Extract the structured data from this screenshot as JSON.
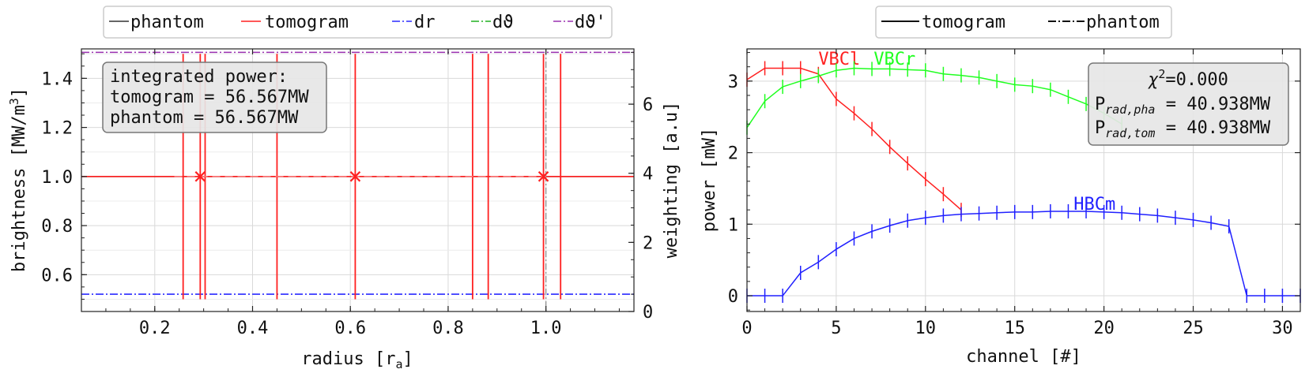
{
  "chart_data": [
    {
      "type": "line",
      "xlabel": "radius [r",
      "xlabel_sub": "a",
      "xlabel_end": "]",
      "ylabel": "brightness [MW/m",
      "ylabel_sup": "3",
      "ylabel_end": "]",
      "y2label": "weighting [a.u]",
      "xlim": [
        0.05,
        1.18
      ],
      "ylim": [
        0.45,
        1.52
      ],
      "y2lim": [
        0,
        7.6
      ],
      "xticks": [
        0.2,
        0.4,
        0.6,
        0.8,
        1.0
      ],
      "xtick_labels": [
        "0.2",
        "0.4",
        "0.6",
        "0.8",
        "1.0"
      ],
      "yticks": [
        0.6,
        0.8,
        1.0,
        1.2,
        1.4
      ],
      "ytick_labels": [
        "0.6",
        "0.8",
        "1.0",
        "1.2",
        "1.4"
      ],
      "y2ticks": [
        0,
        2,
        4,
        6
      ],
      "y2tick_labels": [
        "0",
        "2",
        "4",
        "6"
      ],
      "grid": true,
      "legend_position": "top-center",
      "legend": [
        {
          "label": "phantom",
          "color": "#333333",
          "dash": "solid"
        },
        {
          "label": "tomogram",
          "color": "#ff2020",
          "dash": "solid"
        },
        {
          "label": "dr",
          "color": "#2a2aff",
          "dash": "dashdot"
        },
        {
          "label": "dϑ",
          "color": "#20b020",
          "dash": "dashdot"
        },
        {
          "label": "dϑ'",
          "color": "#9a30b0",
          "dash": "dashdot"
        }
      ],
      "series": [
        {
          "name": "phantom",
          "color": "#333333",
          "x": [
            0.05,
            1.18
          ],
          "y": [
            1.0,
            1.0
          ]
        },
        {
          "name": "tomogram",
          "color": "#ff2020",
          "x": [
            0.05,
            1.18
          ],
          "y": [
            1.0,
            1.0
          ]
        },
        {
          "name": "dr",
          "color": "#2a2aff",
          "x": [
            0.05,
            1.18
          ],
          "y2": [
            0.5,
            0.5
          ]
        },
        {
          "name": "dϑ'",
          "color": "#9a30b0",
          "x": [
            0.05,
            1.18
          ],
          "y2": [
            7.5,
            7.5
          ]
        }
      ],
      "vertical_lines": {
        "color": "#ff2020",
        "x": [
          0.258,
          0.293,
          0.303,
          0.45,
          0.61,
          0.85,
          0.882,
          0.995,
          1.03
        ],
        "y_from": 0.5,
        "y_to": 1.5
      },
      "markers": {
        "color": "#ff2020",
        "symbol": "x",
        "x": [
          0.293,
          0.61,
          0.995
        ],
        "y": [
          1.0,
          1.0,
          1.0
        ]
      },
      "reference_line": {
        "color": "#888888",
        "x": 1.0
      },
      "annotation": {
        "line1": "integrated power:",
        "line2": "tomogram = 56.567MW",
        "line3": "phantom = 56.567MW"
      }
    },
    {
      "type": "line",
      "xlabel": "channel [#]",
      "ylabel": "power [mW]",
      "xlim": [
        0,
        31
      ],
      "ylim": [
        -0.22,
        3.45
      ],
      "xticks": [
        0,
        5,
        10,
        15,
        20,
        25,
        30
      ],
      "xtick_labels": [
        "0",
        "5",
        "10",
        "15",
        "20",
        "25",
        "30"
      ],
      "yticks": [
        0,
        1,
        2,
        3
      ],
      "ytick_labels": [
        "0",
        "1",
        "2",
        "3"
      ],
      "grid": true,
      "legend_position": "top-center",
      "legend": [
        {
          "label": "tomogram",
          "color": "#111111",
          "dash": "solid"
        },
        {
          "label": "phantom",
          "color": "#111111",
          "dash": "dashdot"
        }
      ],
      "series": [
        {
          "name": "VBCl",
          "color": "#ff2020",
          "label_at": [
            4.0,
            3.23
          ],
          "x": [
            0,
            1,
            2,
            3,
            4,
            5,
            6,
            7,
            8,
            9,
            10,
            11,
            12
          ],
          "y": [
            3.02,
            3.18,
            3.18,
            3.18,
            3.1,
            2.75,
            2.55,
            2.33,
            2.08,
            1.85,
            1.63,
            1.42,
            1.2
          ]
        },
        {
          "name": "VBCr",
          "color": "#20ff20",
          "label_at": [
            7.1,
            3.23
          ],
          "x": [
            0,
            1,
            2,
            3,
            4,
            5,
            6,
            7,
            8,
            9,
            10,
            11,
            12,
            13,
            14,
            15,
            16,
            17,
            18,
            19,
            20,
            21
          ],
          "y": [
            2.35,
            2.72,
            2.92,
            3.0,
            3.07,
            3.15,
            3.18,
            3.17,
            3.17,
            3.16,
            3.15,
            3.1,
            3.08,
            3.05,
            3.0,
            2.95,
            2.93,
            2.88,
            2.78,
            2.68,
            2.55,
            2.4
          ]
        },
        {
          "name": "HBCm",
          "color": "#2020ff",
          "label_at": [
            18.3,
            1.2
          ],
          "x": [
            0,
            1,
            2,
            3,
            4,
            5,
            6,
            7,
            8,
            9,
            10,
            11,
            12,
            13,
            14,
            15,
            16,
            17,
            18,
            19,
            20,
            21,
            22,
            23,
            24,
            25,
            26,
            27,
            28,
            29,
            30,
            31
          ],
          "y": [
            0,
            0,
            0,
            0.32,
            0.47,
            0.65,
            0.8,
            0.9,
            0.98,
            1.05,
            1.09,
            1.12,
            1.14,
            1.15,
            1.16,
            1.17,
            1.17,
            1.18,
            1.18,
            1.18,
            1.17,
            1.16,
            1.14,
            1.12,
            1.09,
            1.06,
            1.02,
            0.97,
            0,
            0,
            0,
            0
          ]
        }
      ],
      "annotation": {
        "chi_sym": "χ",
        "chi_sup": "2",
        "chi_val": "=0.000",
        "p1_main": "P",
        "p1_sub": "rad,pha",
        "p1_val": " = 40.938MW",
        "p2_main": "P",
        "p2_sub": "rad,tom",
        "p2_val": " = 40.938MW"
      }
    }
  ]
}
